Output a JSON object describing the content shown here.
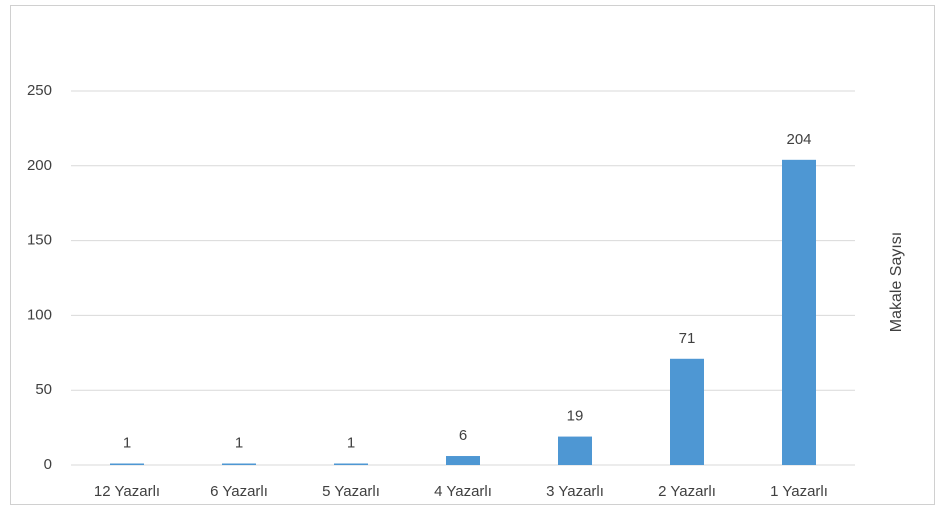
{
  "chart_data": {
    "type": "bar",
    "y_label": "Makale Sayısı",
    "categories": [
      "12 Yazarlı",
      "6 Yazarlı",
      "5 Yazarlı",
      "4 Yazarlı",
      "3 Yazarlı",
      "2 Yazarlı",
      "1 Yazarlı"
    ],
    "values": [
      1,
      1,
      1,
      6,
      19,
      71,
      204
    ],
    "color": "#4e97d3",
    "ylim": [
      0,
      250
    ],
    "yticks": [
      0,
      50,
      100,
      150,
      200,
      250
    ],
    "grid": true
  }
}
